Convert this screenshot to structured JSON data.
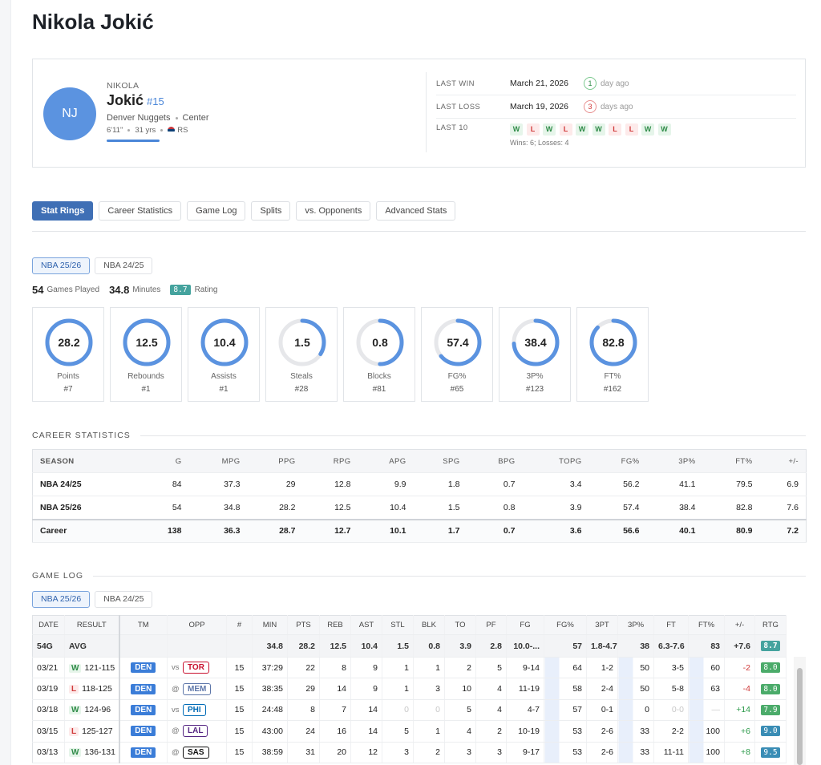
{
  "header": {
    "title": "Nikola Jokić"
  },
  "profile": {
    "initials": "NJ",
    "first_name": "NIKOLA",
    "last_name": "Jokić",
    "number": "#15",
    "team": "Denver Nuggets",
    "position": "Center",
    "height": "6'11\"",
    "age": "31 yrs",
    "country": "RS"
  },
  "recent": {
    "last_win": {
      "label": "LAST WIN",
      "date": "March 21, 2026",
      "count": 1,
      "ago": "day ago"
    },
    "last_loss": {
      "label": "LAST LOSS",
      "date": "March 19, 2026",
      "count": 3,
      "ago": "days ago"
    },
    "last10": {
      "label": "LAST 10",
      "results": [
        "W",
        "L",
        "W",
        "L",
        "W",
        "W",
        "L",
        "L",
        "W",
        "W"
      ],
      "summary": "Wins: 6; Losses: 4"
    }
  },
  "tabs": [
    "Stat Rings",
    "Career Statistics",
    "Game Log",
    "Splits",
    "vs. Opponents",
    "Advanced Stats"
  ],
  "stat_rings": {
    "seasons": [
      "NBA 25/26",
      "NBA 24/25"
    ],
    "games": 54,
    "games_label": "Games Played",
    "minutes": 34.8,
    "minutes_label": "Minutes",
    "rating": 8.7,
    "rating_label": "Rating",
    "rings": [
      {
        "value": 28.2,
        "label": "Points",
        "rank": "#7"
      },
      {
        "value": 12.5,
        "label": "Rebounds",
        "rank": "#1"
      },
      {
        "value": 10.4,
        "label": "Assists",
        "rank": "#1"
      },
      {
        "value": 1.5,
        "label": "Steals",
        "rank": "#28"
      },
      {
        "value": 0.8,
        "label": "Blocks",
        "rank": "#81"
      },
      {
        "value": 57.4,
        "label": "FG%",
        "rank": "#65"
      },
      {
        "value": 38.4,
        "label": "3P%",
        "rank": "#123"
      },
      {
        "value": 82.8,
        "label": "FT%",
        "rank": "#162"
      }
    ]
  },
  "career": {
    "title": "CAREER STATISTICS",
    "columns": [
      "SEASON",
      "G",
      "MPG",
      "PPG",
      "RPG",
      "APG",
      "SPG",
      "BPG",
      "TOPG",
      "FG%",
      "3P%",
      "FT%",
      "+/-"
    ],
    "rows": [
      [
        "NBA 24/25",
        84,
        37.3,
        29,
        12.8,
        9.9,
        1.8,
        0.7,
        3.4,
        56.2,
        41.1,
        79.5,
        6.9
      ],
      [
        "NBA 25/26",
        54,
        34.8,
        28.2,
        12.5,
        10.4,
        1.5,
        0.8,
        3.9,
        57.4,
        38.4,
        82.8,
        7.6
      ],
      [
        "Career",
        138,
        36.3,
        28.7,
        12.7,
        10.1,
        1.7,
        0.7,
        3.6,
        56.6,
        40.1,
        80.9,
        7.2
      ]
    ]
  },
  "game_log": {
    "title": "GAME LOG",
    "seasons": [
      "NBA 25/26",
      "NBA 24/25"
    ],
    "columns": [
      "DATE",
      "RESULT",
      "TM",
      "OPP",
      "#",
      "MIN",
      "PTS",
      "REB",
      "AST",
      "STL",
      "BLK",
      "TO",
      "PF",
      "FG",
      "FG%",
      "3PT",
      "3P%",
      "FT",
      "FT%",
      "+/-",
      "RTG"
    ],
    "average": {
      "games": "54G",
      "label": "AVG",
      "stats": [
        34.8,
        28.2,
        12.5,
        10.4,
        1.5,
        0.8,
        3.9,
        2.8,
        "10.0-...",
        57,
        "1.8-4.7",
        38,
        "6.3-7.6",
        83,
        "+7.6",
        8.7
      ]
    },
    "rows": [
      {
        "date": "03/21",
        "result": "W",
        "score": "121-115",
        "team": "DEN",
        "venue": "vs",
        "opp": "TOR",
        "opp_color": "#c8102e",
        "number": 15,
        "stats": [
          "37:29",
          22,
          8,
          9,
          1,
          1,
          2,
          5,
          "9-14",
          64,
          "1-2",
          50,
          "3-5",
          60,
          -2,
          "8.0"
        ]
      },
      {
        "date": "03/19",
        "result": "L",
        "score": "118-125",
        "team": "DEN",
        "venue": "@",
        "opp": "MEM",
        "opp_color": "#5d76a9",
        "number": 15,
        "stats": [
          "38:35",
          29,
          14,
          9,
          1,
          3,
          10,
          4,
          "11-19",
          58,
          "2-4",
          50,
          "5-8",
          63,
          -4,
          "8.0"
        ]
      },
      {
        "date": "03/18",
        "result": "W",
        "score": "124-96",
        "team": "DEN",
        "venue": "vs",
        "opp": "PHI",
        "opp_color": "#006bb6",
        "number": 15,
        "stats": [
          "24:48",
          8,
          7,
          14,
          0,
          0,
          5,
          4,
          "4-7",
          57,
          "0-1",
          0,
          "0-0",
          "—",
          "+14",
          7.9
        ]
      },
      {
        "date": "03/15",
        "result": "L",
        "score": "125-127",
        "team": "DEN",
        "venue": "@",
        "opp": "LAL",
        "opp_color": "#552583",
        "number": 15,
        "stats": [
          "43:00",
          24,
          16,
          14,
          5,
          1,
          4,
          2,
          "10-19",
          53,
          "2-6",
          33,
          "2-2",
          100,
          "+6",
          "9.0"
        ]
      },
      {
        "date": "03/13",
        "result": "W",
        "score": "136-131",
        "team": "DEN",
        "venue": "@",
        "opp": "SAS",
        "opp_color": "#111111",
        "number": 15,
        "stats": [
          "38:59",
          31,
          20,
          12,
          3,
          2,
          3,
          3,
          "9-17",
          53,
          "2-6",
          33,
          "11-11",
          100,
          "+8",
          9.5
        ]
      }
    ]
  }
}
